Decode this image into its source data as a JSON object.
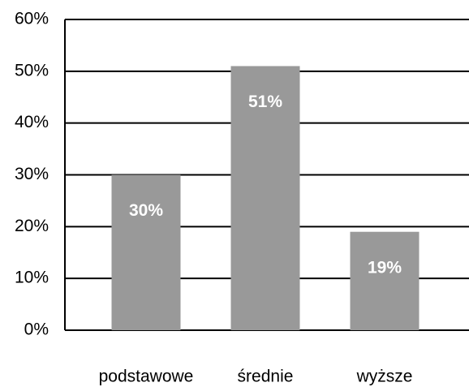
{
  "chart_data": {
    "type": "bar",
    "categories": [
      "podstawowe",
      "średnie",
      "wyższe"
    ],
    "values": [
      30,
      51,
      19
    ],
    "value_labels": [
      "30%",
      "51%",
      "19%"
    ],
    "color": "#999999",
    "ylim": [
      0,
      60
    ],
    "yticks": [
      {
        "value": 0,
        "label": "0%"
      },
      {
        "value": 10,
        "label": "10%"
      },
      {
        "value": 20,
        "label": "20%"
      },
      {
        "value": 30,
        "label": "30%"
      },
      {
        "value": 40,
        "label": "40%"
      },
      {
        "value": 50,
        "label": "50%"
      },
      {
        "value": 60,
        "label": "60%"
      }
    ],
    "grid": true
  }
}
